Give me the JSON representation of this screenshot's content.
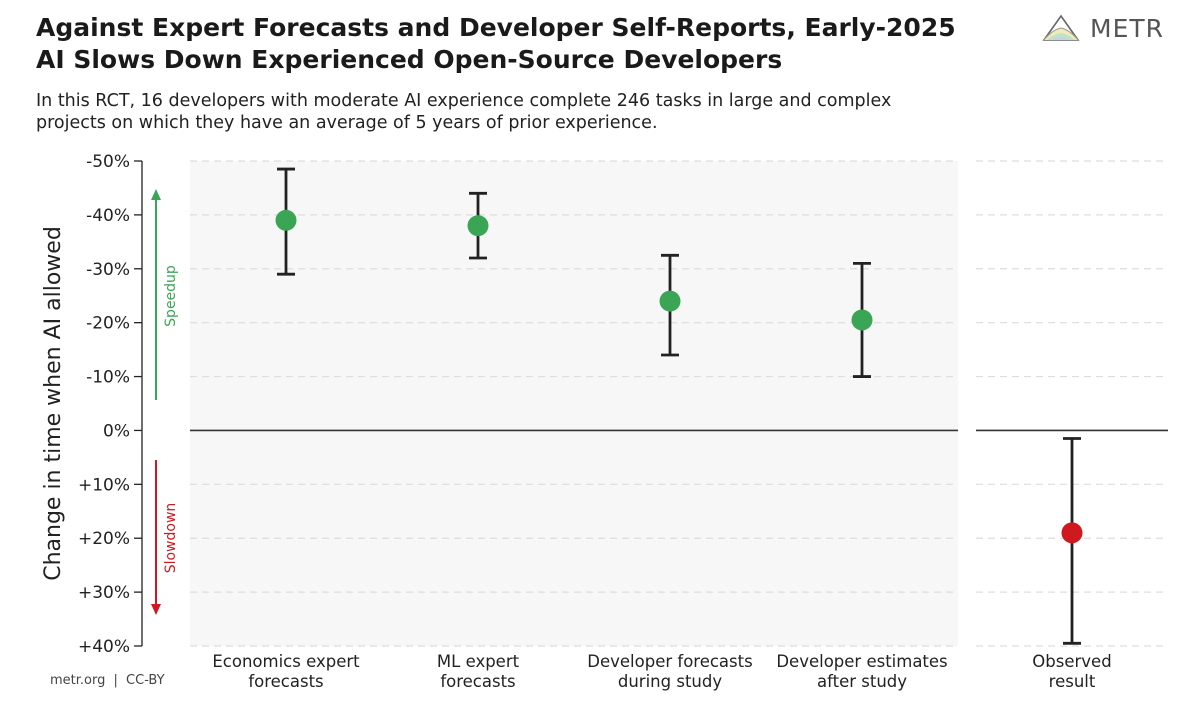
{
  "header": {
    "title_line1": "Against Expert Forecasts and Developer Self-Reports, Early-2025",
    "title_line2": "AI Slows Down Experienced Open-Source Developers",
    "subtitle_line1": "In this RCT, 16 developers with moderate AI experience complete 246 tasks in large and complex",
    "subtitle_line2": "projects on which they have an average of 5 years of prior experience."
  },
  "logo": {
    "text": "METR",
    "icon": "metr-logo-icon"
  },
  "footer": {
    "source": "metr.org",
    "separator": "|",
    "license": "CC-BY"
  },
  "colors": {
    "speedup": "#3aa655",
    "slowdown": "#d0181f",
    "panel_bg": "#f7f7f7",
    "errorbar": "#222222"
  },
  "chart_data": {
    "type": "scatter",
    "ylabel": "Change in time when AI allowed",
    "ylim": [
      -50,
      40
    ],
    "y_ticks": [
      -50,
      -40,
      -30,
      -20,
      -10,
      0,
      10,
      20,
      30,
      40
    ],
    "y_tick_labels": [
      "-50%",
      "-40%",
      "-30%",
      "-20%",
      "-10%",
      "0%",
      "+10%",
      "+20%",
      "+30%",
      "+40%"
    ],
    "annotations": {
      "speedup": "Speedup",
      "slowdown": "Slowdown"
    },
    "grid": true,
    "points": [
      {
        "label_line1": "Economics expert",
        "label_line2": "forecasts",
        "value": -39,
        "ci": [
          -48.5,
          -29
        ],
        "panel": "forecasts",
        "color": "speedup"
      },
      {
        "label_line1": "ML expert",
        "label_line2": "forecasts",
        "value": -38,
        "ci": [
          -44,
          -32
        ],
        "panel": "forecasts",
        "color": "speedup"
      },
      {
        "label_line1": "Developer forecasts",
        "label_line2": "during study",
        "value": -24,
        "ci": [
          -32.5,
          -14
        ],
        "panel": "forecasts",
        "color": "speedup"
      },
      {
        "label_line1": "Developer estimates",
        "label_line2": "after study",
        "value": -20.5,
        "ci": [
          -31,
          -10
        ],
        "panel": "forecasts",
        "color": "speedup"
      },
      {
        "label_line1": "Observed",
        "label_line2": "result",
        "value": 19,
        "ci": [
          1.5,
          39.5
        ],
        "panel": "observed",
        "color": "slowdown"
      }
    ]
  }
}
